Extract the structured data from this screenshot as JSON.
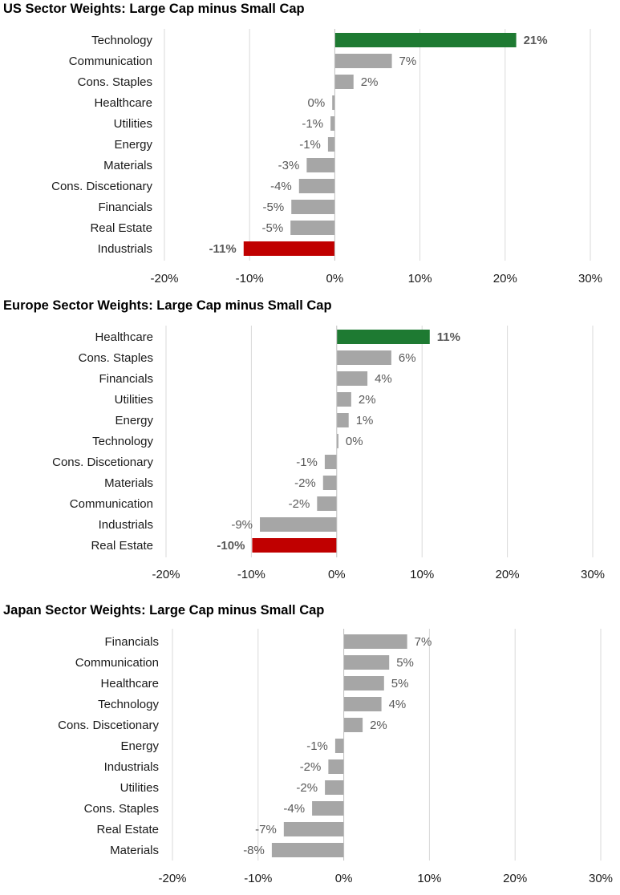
{
  "colors": {
    "default_bar": "#a6a6a6",
    "highlight_max": "#1e7a32",
    "highlight_min": "#c00000",
    "grid": "#d9d9d9",
    "label": "#595959"
  },
  "chart_data": [
    {
      "type": "bar",
      "orientation": "horizontal",
      "title": "US Sector Weights: Large Cap minus Small Cap",
      "categories": [
        "Technology",
        "Communication",
        "Cons. Staples",
        "Healthcare",
        "Utilities",
        "Energy",
        "Materials",
        "Cons. Discetionary",
        "Financials",
        "Real Estate",
        "Industrials"
      ],
      "values": [
        21.3,
        6.7,
        2.2,
        -0.3,
        -0.5,
        -0.8,
        -3.3,
        -4.2,
        -5.1,
        -5.2,
        -10.7
      ],
      "labels": [
        "21%",
        "7%",
        "2%",
        "0%",
        "-1%",
        "-1%",
        "-3%",
        "-4%",
        "-5%",
        "-5%",
        "-11%"
      ],
      "highlight": [
        "max",
        "",
        "",
        "",
        "",
        "",
        "",
        "",
        "",
        "",
        "min"
      ],
      "xlim": [
        -20,
        30
      ],
      "ticks": [
        -20,
        -10,
        0,
        10,
        20,
        30
      ],
      "tick_labels": [
        "-20%",
        "-10%",
        "0%",
        "10%",
        "20%",
        "30%"
      ],
      "grid": true
    },
    {
      "type": "bar",
      "orientation": "horizontal",
      "title": "Europe Sector Weights: Large Cap minus Small Cap",
      "categories": [
        "Healthcare",
        "Cons. Staples",
        "Financials",
        "Utilities",
        "Energy",
        "Technology",
        "Cons. Discetionary",
        "Materials",
        "Communication",
        "Industrials",
        "Real Estate"
      ],
      "values": [
        10.9,
        6.4,
        3.6,
        1.7,
        1.4,
        0.2,
        -1.4,
        -1.6,
        -2.3,
        -9.0,
        -9.9
      ],
      "labels": [
        "11%",
        "6%",
        "4%",
        "2%",
        "1%",
        "0%",
        "-1%",
        "-2%",
        "-2%",
        "-9%",
        "-10%"
      ],
      "highlight": [
        "max",
        "",
        "",
        "",
        "",
        "",
        "",
        "",
        "",
        "",
        "min"
      ],
      "xlim": [
        -20,
        30
      ],
      "ticks": [
        -20,
        -10,
        0,
        10,
        20,
        30
      ],
      "tick_labels": [
        "-20%",
        "-10%",
        "0%",
        "10%",
        "20%",
        "30%"
      ],
      "grid": true
    },
    {
      "type": "bar",
      "orientation": "horizontal",
      "title": "Japan Sector Weights: Large Cap minus Small Cap",
      "categories": [
        "Financials",
        "Communication",
        "Healthcare",
        "Technology",
        "Cons. Discetionary",
        "Energy",
        "Industrials",
        "Utilities",
        "Cons. Staples",
        "Real Estate",
        "Materials"
      ],
      "values": [
        7.4,
        5.3,
        4.7,
        4.4,
        2.2,
        -1.0,
        -1.8,
        -2.2,
        -3.7,
        -7.0,
        -8.4
      ],
      "labels": [
        "7%",
        "5%",
        "5%",
        "4%",
        "2%",
        "-1%",
        "-2%",
        "-2%",
        "-4%",
        "-7%",
        "-8%"
      ],
      "highlight": [
        "",
        "",
        "",
        "",
        "",
        "",
        "",
        "",
        "",
        "",
        ""
      ],
      "xlim": [
        -20,
        30
      ],
      "ticks": [
        -20,
        -10,
        0,
        10,
        20,
        30
      ],
      "tick_labels": [
        "-20%",
        "-10%",
        "0%",
        "10%",
        "20%",
        "30%"
      ],
      "grid": true
    }
  ]
}
